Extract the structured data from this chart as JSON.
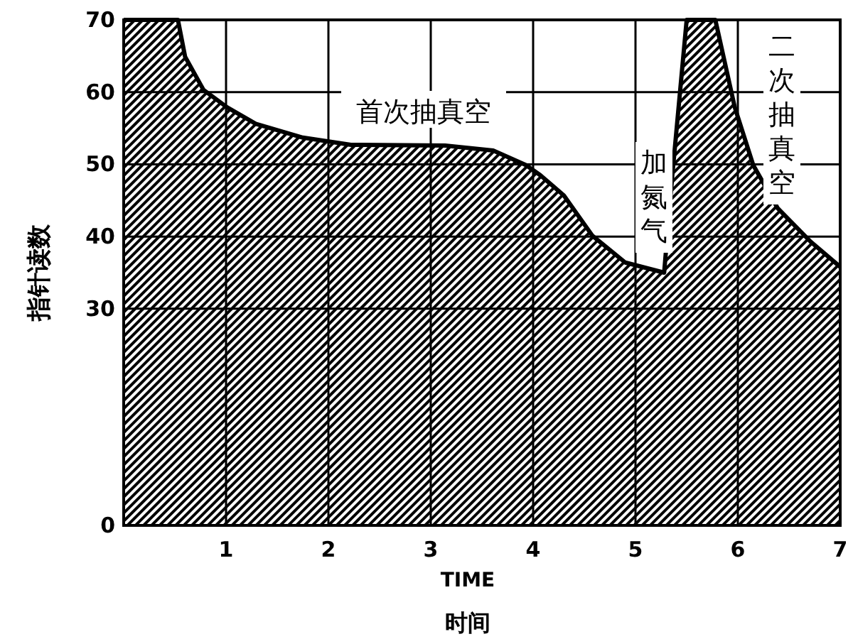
{
  "chart_data": {
    "type": "area",
    "xlabel": "TIME",
    "ylabel": "指针读数",
    "annotations": [
      "时间",
      "首次抽真空",
      "加氮气",
      "二次抽真空"
    ],
    "x": [
      0,
      0.53,
      0.6,
      0.78,
      1.01,
      1.29,
      1.75,
      2.22,
      3.14,
      3.61,
      3.93,
      4.07,
      4.3,
      4.58,
      4.9,
      5.28,
      5.36,
      5.5,
      5.78,
      5.97,
      6.15,
      6.39,
      6.71,
      7
    ],
    "series": [
      {
        "color": "#000000",
        "values": [
          70,
          70,
          64.9,
          60.3,
          57.9,
          55.6,
          53.7,
          52.7,
          52.6,
          51.9,
          49.9,
          48.5,
          45.7,
          40.1,
          36.4,
          35,
          48.5,
          70,
          70,
          57.9,
          49.9,
          43.9,
          39.3,
          35.8
        ]
      }
    ],
    "xlim": [
      0,
      7
    ],
    "ylim": [
      0,
      70
    ],
    "xticks": [
      1,
      2,
      3,
      4,
      5,
      6,
      7
    ],
    "yticks": [
      0,
      30,
      40,
      50,
      60,
      70
    ],
    "grid": true
  }
}
